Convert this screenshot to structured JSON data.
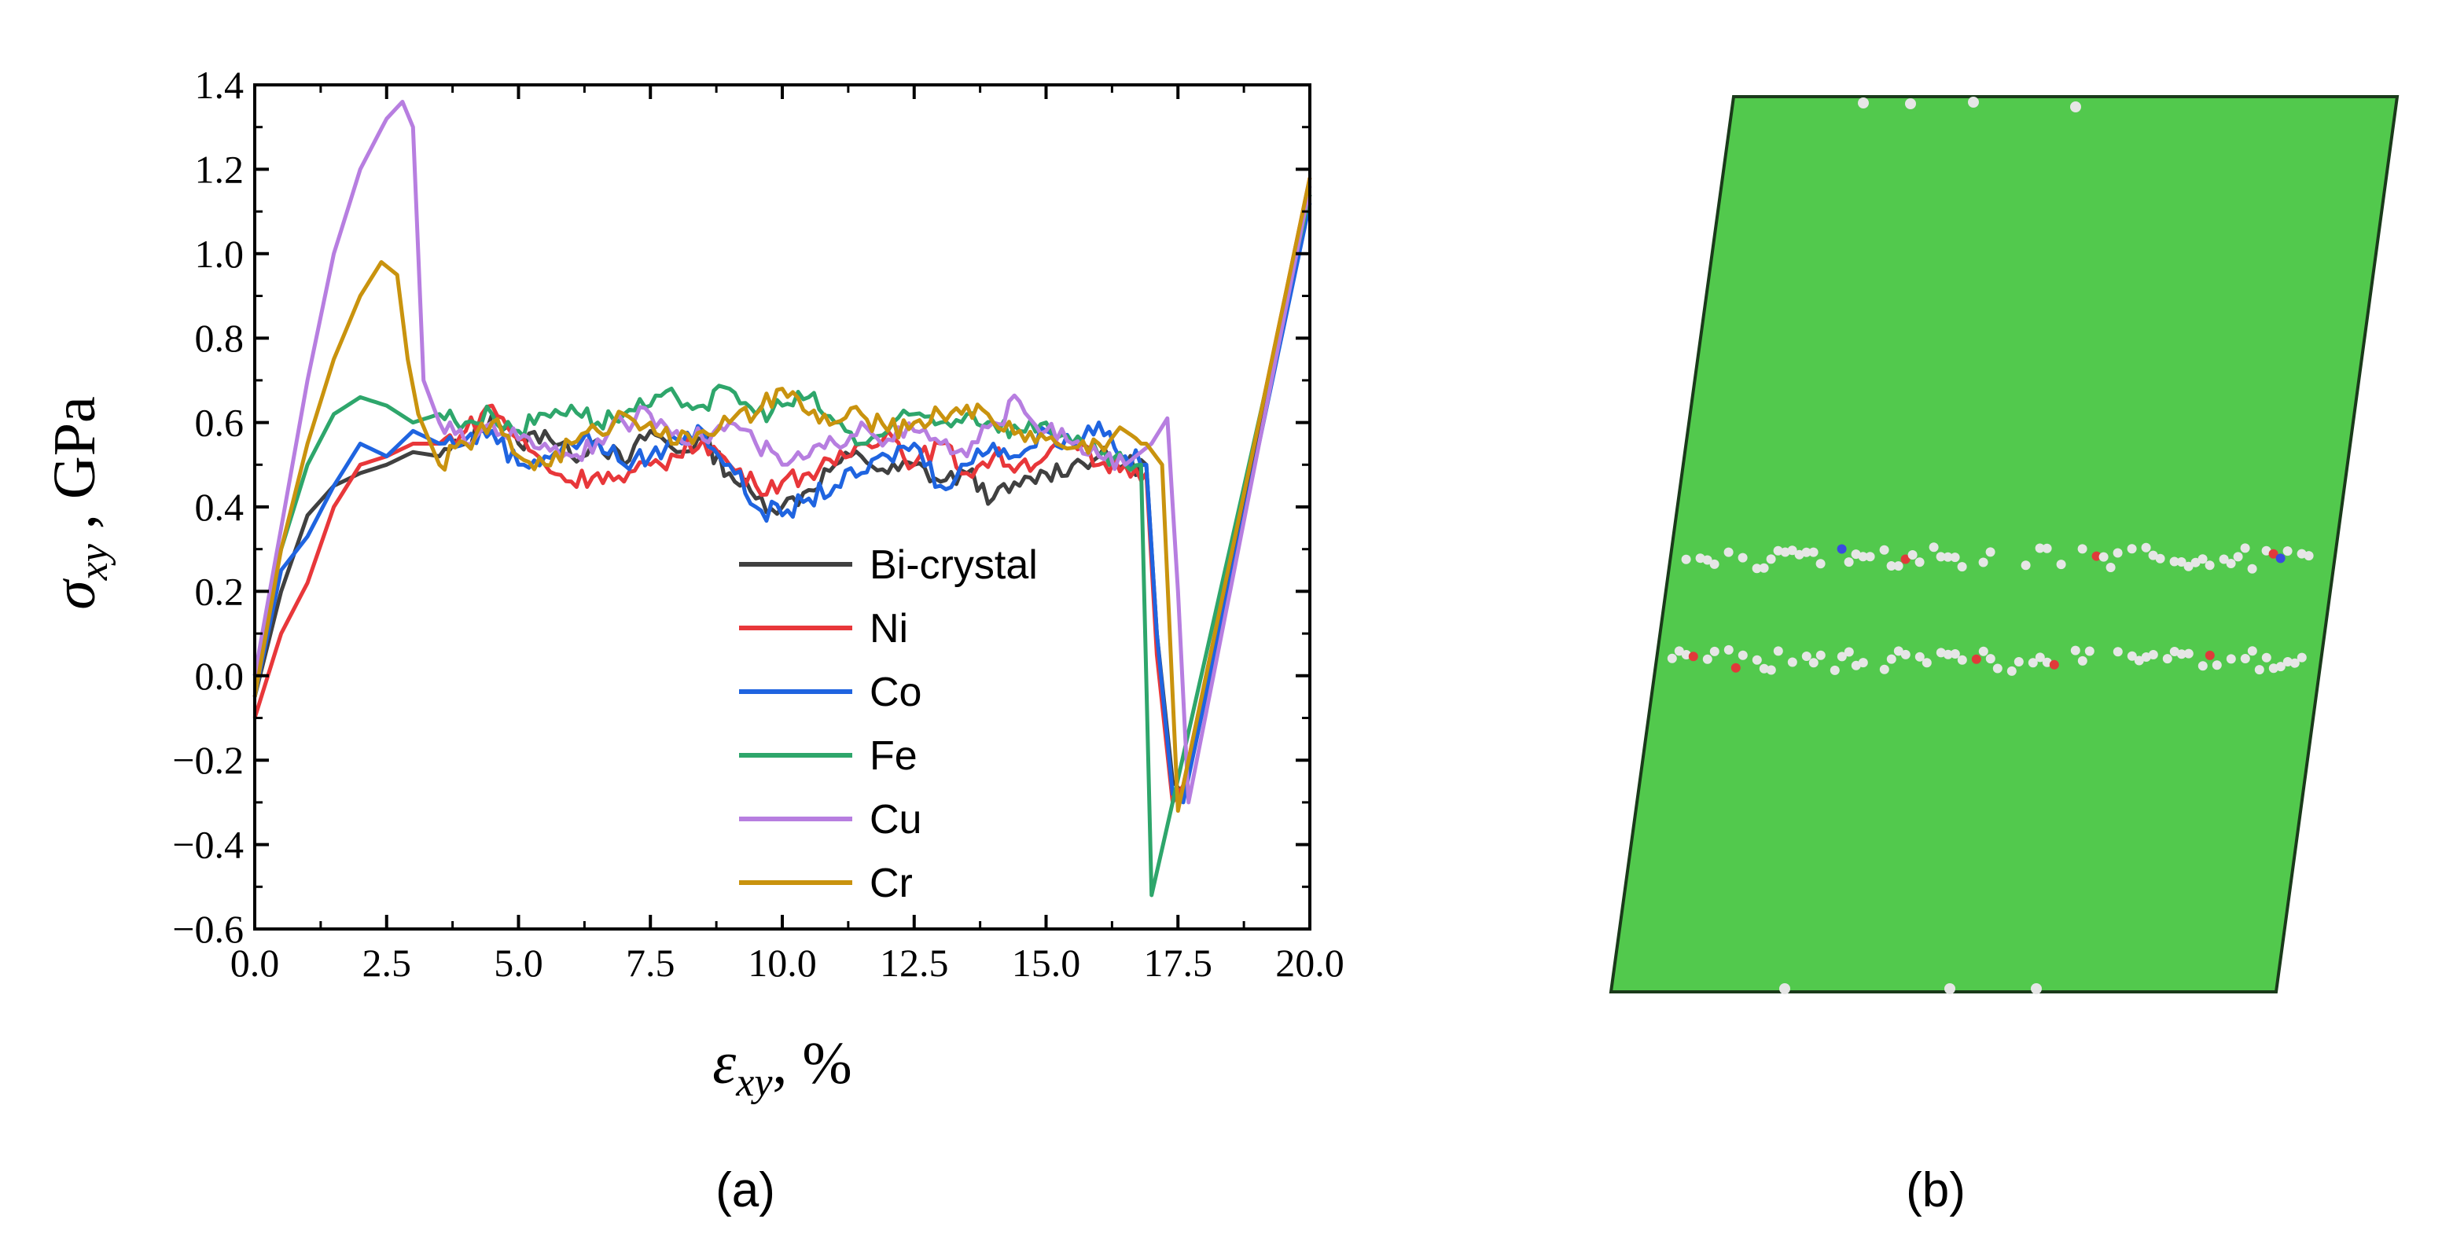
{
  "chart_data": {
    "type": "line",
    "xlabel_symbol": "ε",
    "xlabel_sub": "xy",
    "xlabel_unit": ", %",
    "ylabel_symbol": "σ",
    "ylabel_sub": "xy",
    "ylabel_unit": " , GPa",
    "xlim": [
      0,
      20
    ],
    "ylim": [
      -0.6,
      1.4
    ],
    "xticks": [
      0,
      2.5,
      5,
      7.5,
      10,
      12.5,
      15,
      17.5,
      20
    ],
    "xtick_labels": [
      "0.0",
      "2.5",
      "5.0",
      "7.5",
      "10.0",
      "12.5",
      "15.0",
      "17.5",
      "20.0"
    ],
    "yticks": [
      -0.6,
      -0.4,
      -0.2,
      0,
      0.2,
      0.4,
      0.6,
      0.8,
      1.0,
      1.2,
      1.4
    ],
    "ytick_labels": [
      "−0.6",
      "−0.4",
      "−0.2",
      "0.0",
      "0.2",
      "0.4",
      "0.6",
      "0.8",
      "1.0",
      "1.2",
      "1.4"
    ],
    "legend_position": "center-right",
    "series": [
      {
        "name": "Bi-crystal",
        "color": "#404040",
        "x": [
          0,
          0.5,
          1,
          1.5,
          2,
          2.5,
          3,
          3.5,
          4,
          4.5,
          5,
          5.5,
          6,
          6.5,
          7,
          7.5,
          8,
          8.5,
          9,
          9.5,
          10,
          10.5,
          11,
          11.5,
          12,
          12.5,
          13,
          13.5,
          14,
          14.5,
          15,
          15.5,
          16,
          16.5,
          16.9,
          17.1,
          17.4,
          17.6,
          20
        ],
        "y": [
          -0.05,
          0.2,
          0.38,
          0.45,
          0.48,
          0.5,
          0.53,
          0.52,
          0.55,
          0.62,
          0.55,
          0.58,
          0.52,
          0.56,
          0.5,
          0.58,
          0.53,
          0.56,
          0.48,
          0.42,
          0.4,
          0.44,
          0.5,
          0.52,
          0.48,
          0.5,
          0.46,
          0.48,
          0.42,
          0.45,
          0.48,
          0.5,
          0.52,
          0.5,
          0.5,
          0.1,
          -0.25,
          -0.28,
          1.14
        ]
      },
      {
        "name": "Ni",
        "color": "#e8373a",
        "x": [
          0,
          0.5,
          1,
          1.5,
          2,
          2.5,
          3,
          3.5,
          4,
          4.5,
          5,
          5.5,
          6,
          6.5,
          7,
          7.5,
          8,
          8.5,
          9,
          9.5,
          10,
          10.5,
          11,
          11.5,
          12,
          12.5,
          13,
          13.5,
          14,
          14.5,
          15,
          15.5,
          16,
          16.5,
          16.9,
          17.1,
          17.4,
          17.6,
          20
        ],
        "y": [
          -0.1,
          0.1,
          0.22,
          0.4,
          0.5,
          0.52,
          0.55,
          0.55,
          0.58,
          0.64,
          0.56,
          0.5,
          0.46,
          0.48,
          0.46,
          0.5,
          0.52,
          0.56,
          0.5,
          0.45,
          0.46,
          0.48,
          0.5,
          0.55,
          0.58,
          0.5,
          0.55,
          0.48,
          0.52,
          0.5,
          0.52,
          0.55,
          0.5,
          0.5,
          0.48,
          0.05,
          -0.3,
          -0.26,
          1.18
        ]
      },
      {
        "name": "Co",
        "color": "#1f64e0",
        "x": [
          0,
          0.5,
          1,
          1.5,
          2,
          2.5,
          3,
          3.5,
          4,
          4.5,
          5,
          5.5,
          6,
          6.5,
          7,
          7.5,
          8,
          8.5,
          9,
          9.5,
          10,
          10.5,
          11,
          11.5,
          12,
          12.5,
          13,
          13.5,
          14,
          14.5,
          15,
          15.5,
          16,
          16.5,
          16.9,
          17.1,
          17.4,
          17.6,
          20
        ],
        "y": [
          -0.05,
          0.25,
          0.33,
          0.45,
          0.55,
          0.52,
          0.58,
          0.55,
          0.56,
          0.58,
          0.5,
          0.52,
          0.55,
          0.56,
          0.5,
          0.52,
          0.56,
          0.58,
          0.5,
          0.4,
          0.38,
          0.42,
          0.45,
          0.48,
          0.52,
          0.55,
          0.45,
          0.5,
          0.55,
          0.52,
          0.58,
          0.55,
          0.6,
          0.52,
          0.5,
          0.1,
          -0.28,
          -0.3,
          1.12
        ]
      },
      {
        "name": "Fe",
        "color": "#2ea66b",
        "x": [
          0,
          0.5,
          1,
          1.5,
          2,
          2.5,
          3,
          3.5,
          4,
          4.5,
          5,
          5.5,
          6,
          6.5,
          7,
          7.5,
          8,
          8.5,
          9,
          9.5,
          10,
          10.5,
          11,
          11.5,
          12,
          12.5,
          13,
          13.5,
          14,
          14.5,
          15,
          15.5,
          16,
          16.5,
          16.8,
          17.0,
          17.4,
          20
        ],
        "y": [
          0,
          0.3,
          0.5,
          0.62,
          0.66,
          0.64,
          0.6,
          0.62,
          0.6,
          0.62,
          0.58,
          0.62,
          0.64,
          0.6,
          0.62,
          0.64,
          0.66,
          0.64,
          0.68,
          0.62,
          0.64,
          0.66,
          0.6,
          0.55,
          0.58,
          0.62,
          0.6,
          0.62,
          0.6,
          0.58,
          0.6,
          0.55,
          0.52,
          0.5,
          0.5,
          -0.52,
          -0.3,
          1.14
        ]
      },
      {
        "name": "Cu",
        "color": "#b77ee0",
        "x": [
          0,
          0.5,
          1,
          1.5,
          2,
          2.5,
          2.8,
          3.0,
          3.2,
          3.5,
          4,
          4.5,
          5,
          5.5,
          6,
          6.5,
          7,
          7.5,
          8,
          8.5,
          9,
          9.5,
          10,
          10.5,
          11,
          11.5,
          12,
          12.5,
          13,
          13.5,
          14,
          14.5,
          15,
          15.5,
          16,
          16.5,
          17.0,
          17.3,
          17.5,
          17.7,
          20
        ],
        "y": [
          0,
          0.35,
          0.7,
          1.0,
          1.2,
          1.32,
          1.36,
          1.3,
          0.7,
          0.6,
          0.55,
          0.6,
          0.56,
          0.55,
          0.52,
          0.56,
          0.6,
          0.62,
          0.58,
          0.56,
          0.6,
          0.55,
          0.5,
          0.52,
          0.55,
          0.6,
          0.56,
          0.58,
          0.55,
          0.52,
          0.6,
          0.65,
          0.58,
          0.55,
          0.52,
          0.5,
          0.55,
          0.61,
          0.2,
          -0.3,
          1.16
        ]
      },
      {
        "name": "Cr",
        "color": "#c9930e",
        "x": [
          0,
          0.5,
          1,
          1.5,
          2,
          2.4,
          2.7,
          2.9,
          3.1,
          3.5,
          4,
          4.5,
          5,
          5.5,
          6,
          6.5,
          7,
          7.5,
          8,
          8.5,
          9,
          9.5,
          10,
          10.5,
          11,
          11.5,
          12,
          12.5,
          13,
          13.5,
          14,
          14.5,
          15,
          15.5,
          16,
          16.5,
          16.9,
          17.2,
          17.5,
          20
        ],
        "y": [
          -0.05,
          0.3,
          0.55,
          0.75,
          0.9,
          0.98,
          0.95,
          0.75,
          0.62,
          0.5,
          0.55,
          0.6,
          0.52,
          0.5,
          0.55,
          0.58,
          0.62,
          0.6,
          0.55,
          0.58,
          0.6,
          0.62,
          0.68,
          0.62,
          0.6,
          0.62,
          0.58,
          0.6,
          0.62,
          0.64,
          0.6,
          0.58,
          0.56,
          0.54,
          0.55,
          0.58,
          0.55,
          0.5,
          -0.32,
          1.18
        ]
      }
    ]
  },
  "labels": {
    "panel_a": "(a)",
    "panel_b": "(b)"
  }
}
